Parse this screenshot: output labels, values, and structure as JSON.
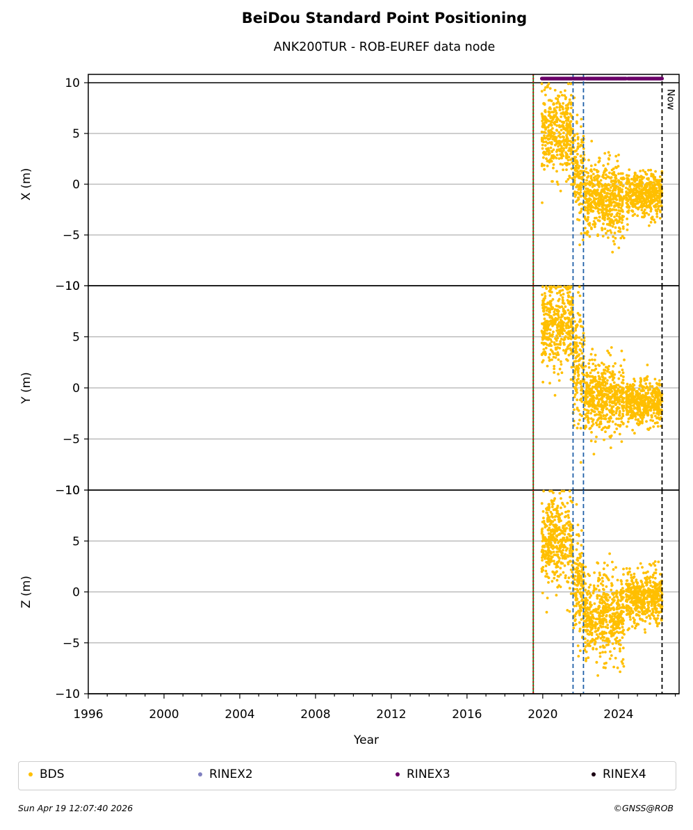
{
  "header": {
    "title": "BeiDou Standard Point Positioning",
    "subtitle": "ANK200TUR - ROB-EUREF data node"
  },
  "footer": {
    "timestamp": "Sun Apr 19 12:07:40 2026",
    "copyright": "©GNSS@ROB"
  },
  "legend": [
    {
      "label": "BDS",
      "color": "#ffbf00"
    },
    {
      "label": "RINEX2",
      "color": "#7f7fbf"
    },
    {
      "label": "RINEX3",
      "color": "#6a0069"
    },
    {
      "label": "RINEX4",
      "color": "#1a0012"
    }
  ],
  "chart_data": {
    "type": "scatter",
    "xlabel": "Year",
    "xlim": [
      1996,
      2027.2
    ],
    "x_ticks": [
      1996,
      2000,
      2004,
      2008,
      2012,
      2016,
      2020,
      2024
    ],
    "ylim": [
      -10,
      10
    ],
    "y_ticks": [
      -10,
      -5,
      0,
      5,
      10
    ],
    "grid": "horizontal",
    "legend_position": "bottom",
    "now_label": "Now",
    "vertical_markers": [
      {
        "x": 2019.5,
        "style": "solid",
        "color": "#1a7a1a"
      },
      {
        "x": 2019.5,
        "style": "dotted",
        "color": "#cc0000"
      },
      {
        "x": 2021.6,
        "style": "dashed",
        "color": "#1f5fa8"
      },
      {
        "x": 2022.15,
        "style": "dashed",
        "color": "#1f5fa8"
      },
      {
        "x": 2026.3,
        "style": "dashed",
        "color": "#000000",
        "label": "Now"
      }
    ],
    "rinex3_bar": [
      {
        "from": 2019.95,
        "to": 2021.55
      },
      {
        "from": 2021.6,
        "to": 2022.2
      },
      {
        "from": 2022.3,
        "to": 2024.4
      },
      {
        "from": 2024.5,
        "to": 2026.3
      }
    ],
    "panels": [
      {
        "ylabel": "X (m)",
        "segments": [
          {
            "from": 2019.95,
            "to": 2021.6,
            "mean": 5.0,
            "spread": 2.8
          },
          {
            "from": 2021.6,
            "to": 2022.2,
            "mean": 1.0,
            "spread": 3.5
          },
          {
            "from": 2022.2,
            "to": 2024.3,
            "mean": -1.5,
            "spread": 2.6
          },
          {
            "from": 2024.4,
            "to": 2026.3,
            "mean": -1.0,
            "spread": 1.5
          }
        ]
      },
      {
        "ylabel": "Y (m)",
        "segments": [
          {
            "from": 2019.95,
            "to": 2021.6,
            "mean": 6.0,
            "spread": 3.2
          },
          {
            "from": 2021.6,
            "to": 2022.2,
            "mean": 2.0,
            "spread": 4.0
          },
          {
            "from": 2022.2,
            "to": 2024.3,
            "mean": -0.8,
            "spread": 2.4
          },
          {
            "from": 2024.4,
            "to": 2026.3,
            "mean": -1.5,
            "spread": 1.5
          }
        ]
      },
      {
        "ylabel": "Z (m)",
        "segments": [
          {
            "from": 2019.95,
            "to": 2021.6,
            "mean": 5.0,
            "spread": 3.2
          },
          {
            "from": 2021.6,
            "to": 2022.2,
            "mean": 0.5,
            "spread": 3.5
          },
          {
            "from": 2022.2,
            "to": 2024.3,
            "mean": -2.5,
            "spread": 3.0
          },
          {
            "from": 2024.4,
            "to": 2026.3,
            "mean": -0.5,
            "spread": 1.8
          }
        ]
      }
    ]
  }
}
